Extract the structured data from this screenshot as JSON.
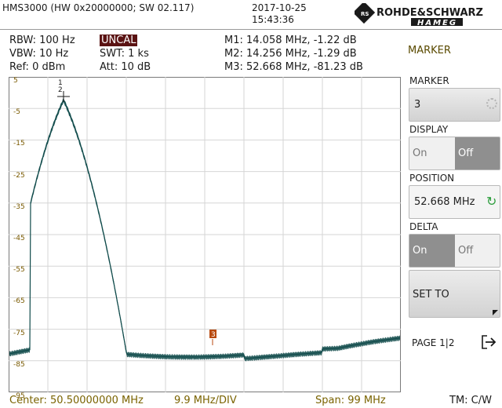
{
  "header": {
    "model": "HMS3000 (HW 0x20000000; SW 02.117)",
    "date": "2017-10-25",
    "time": "15:43:36",
    "brand_line1": "ROHDE&SCHWARZ",
    "brand_line2": "HAMEG"
  },
  "settings": {
    "rbw": "RBW: 100 Hz",
    "vbw": "VBW: 10 Hz",
    "ref": "Ref: 0 dBm",
    "uncal": "UNCAL",
    "swt": "SWT: 1 ks",
    "att": "Att: 10 dB"
  },
  "markers": {
    "m1": "M1: 14.058 MHz, -1.22 dB",
    "m2": "M2: 14.256 MHz, -1.29 dB",
    "m3": "M3: 52.668 MHz, -81.23 dB",
    "marker_labels": [
      "1",
      "2",
      "3"
    ]
  },
  "plot": {
    "y_ticks": [
      "5",
      "-5",
      "-15",
      "-25",
      "-35",
      "-45",
      "-55",
      "-65",
      "-75",
      "-85",
      "-95"
    ],
    "trace_color": "#0f4a4a",
    "marker3_color": "#b84a10"
  },
  "footer": {
    "center": "Center: 50.50000000 MHz",
    "div": "9.9 MHz/DIV",
    "span": "Span: 99 MHz",
    "tm": "TM: C/W"
  },
  "menu": {
    "title": "MARKER",
    "marker_label": "MARKER",
    "marker_value": "3",
    "display_label": "DISPLAY",
    "display_on": "On",
    "display_off": "Off",
    "position_label": "POSITION",
    "position_value": "52.668 MHz",
    "delta_label": "DELTA",
    "delta_on": "On",
    "delta_off": "Off",
    "set_to": "SET TO",
    "page": "PAGE 1|2"
  }
}
